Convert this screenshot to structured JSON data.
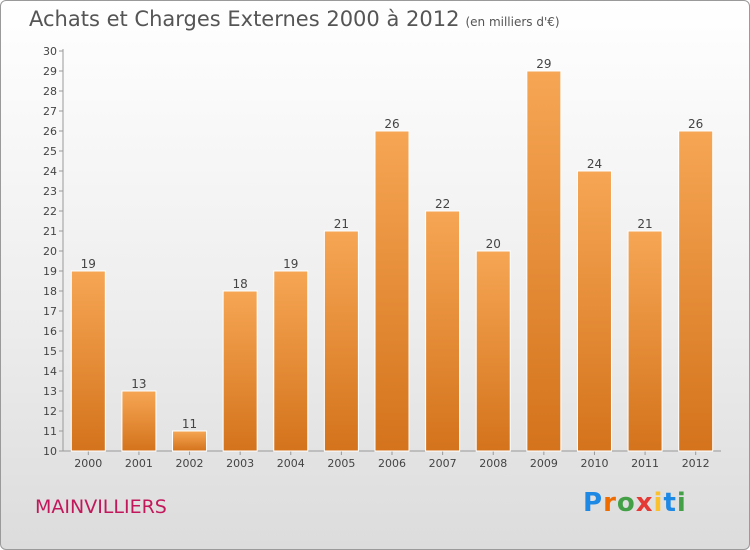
{
  "title": "Achats et Charges Externes 2000 à 2012",
  "subtitle": "(en milliers d'€)",
  "town": "MAINVILLIERS",
  "logo": {
    "text": "Proxiti",
    "letters": [
      "P",
      "r",
      "o",
      "x",
      "i",
      "t",
      "i"
    ],
    "colors": [
      "#1e88e5",
      "#ef6c00",
      "#43a047",
      "#e53935",
      "#fbc02d",
      "#1e88e5",
      "#43a047"
    ]
  },
  "chart_data": {
    "type": "bar",
    "categories": [
      "2000",
      "2001",
      "2002",
      "2003",
      "2004",
      "2005",
      "2006",
      "2007",
      "2008",
      "2009",
      "2010",
      "2011",
      "2012"
    ],
    "values": [
      19,
      13,
      11,
      18,
      19,
      21,
      26,
      22,
      20,
      29,
      24,
      21,
      26
    ],
    "ylim": [
      10,
      30
    ],
    "yticks": [
      10,
      11,
      12,
      13,
      14,
      15,
      16,
      17,
      18,
      19,
      20,
      21,
      22,
      23,
      24,
      25,
      26,
      27,
      28,
      29,
      30
    ],
    "grid": false,
    "bar_color_top": "#f6a654",
    "bar_color_bottom": "#d4731c"
  }
}
